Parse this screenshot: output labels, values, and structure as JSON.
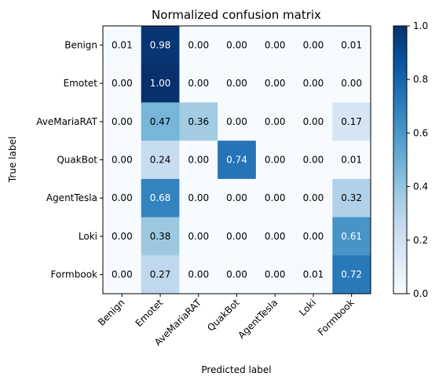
{
  "chart_data": {
    "type": "heatmap",
    "title": "Normalized confusion matrix",
    "xlabel": "Predicted label",
    "ylabel": "True label",
    "x_categories": [
      "Benign",
      "Emotet",
      "AveMariaRAT",
      "QuakBot",
      "AgentTesla",
      "Loki",
      "Formbook"
    ],
    "y_categories": [
      "Benign",
      "Emotet",
      "AveMariaRAT",
      "QuakBot",
      "AgentTesla",
      "Loki",
      "Formbook"
    ],
    "values": [
      [
        0.01,
        0.98,
        0.0,
        0.0,
        0.0,
        0.0,
        0.01
      ],
      [
        0.0,
        1.0,
        0.0,
        0.0,
        0.0,
        0.0,
        0.0
      ],
      [
        0.0,
        0.47,
        0.36,
        0.0,
        0.0,
        0.0,
        0.17
      ],
      [
        0.0,
        0.24,
        0.0,
        0.74,
        0.0,
        0.0,
        0.01
      ],
      [
        0.0,
        0.68,
        0.0,
        0.0,
        0.0,
        0.0,
        0.32
      ],
      [
        0.0,
        0.38,
        0.0,
        0.0,
        0.0,
        0.0,
        0.61
      ],
      [
        0.0,
        0.27,
        0.0,
        0.0,
        0.0,
        0.01,
        0.72
      ]
    ],
    "colormap": "Blues",
    "colorbar": {
      "range": [
        0,
        1
      ],
      "ticks": [
        "0.0",
        "0.2",
        "0.4",
        "0.6",
        "0.8",
        "1.0"
      ]
    }
  }
}
